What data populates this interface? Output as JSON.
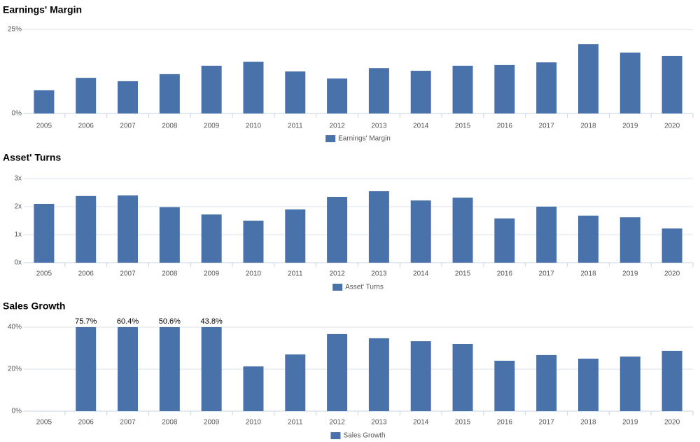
{
  "chart_data": [
    {
      "type": "bar",
      "title": "Earnings' Margin",
      "categories": [
        "2005",
        "2006",
        "2007",
        "2008",
        "2009",
        "2010",
        "2011",
        "2012",
        "2013",
        "2014",
        "2015",
        "2016",
        "2017",
        "2018",
        "2019",
        "2020"
      ],
      "series": [
        {
          "name": "Earnings' Margin",
          "color": "#4a72aa",
          "values": [
            6.9,
            10.6,
            9.6,
            11.7,
            14.2,
            15.4,
            12.5,
            10.4,
            13.5,
            12.7,
            14.2,
            14.4,
            15.2,
            20.6,
            18.1,
            17.1
          ]
        }
      ],
      "ylim": [
        0,
        25
      ],
      "yticks": [
        {
          "value": 0,
          "label": "0%"
        },
        {
          "value": 25,
          "label": "25%"
        }
      ],
      "grid": true
    },
    {
      "type": "bar",
      "title": "Asset' Turns",
      "categories": [
        "2005",
        "2006",
        "2007",
        "2008",
        "2009",
        "2010",
        "2011",
        "2012",
        "2013",
        "2014",
        "2015",
        "2016",
        "2017",
        "2018",
        "2019",
        "2020"
      ],
      "series": [
        {
          "name": "Asset' Turns",
          "color": "#4a72aa",
          "values": [
            2.1,
            2.38,
            2.4,
            1.98,
            1.72,
            1.5,
            1.9,
            2.35,
            2.55,
            2.22,
            2.32,
            1.58,
            2.0,
            1.68,
            1.62,
            1.22
          ]
        }
      ],
      "ylim": [
        0,
        3
      ],
      "yticks": [
        {
          "value": 0,
          "label": "0x"
        },
        {
          "value": 1,
          "label": "1x"
        },
        {
          "value": 2,
          "label": "2x"
        },
        {
          "value": 3,
          "label": "3x"
        }
      ],
      "grid": true
    },
    {
      "type": "bar",
      "title": "Sales Growth",
      "categories": [
        "2005",
        "2006",
        "2007",
        "2008",
        "2009",
        "2010",
        "2011",
        "2012",
        "2013",
        "2014",
        "2015",
        "2016",
        "2017",
        "2018",
        "2019",
        "2020"
      ],
      "series": [
        {
          "name": "Sales Growth",
          "color": "#4a72aa",
          "values": [
            null,
            75.7,
            60.4,
            50.6,
            43.8,
            21.3,
            27,
            36.7,
            34.7,
            33.3,
            32,
            24,
            26.7,
            25,
            26,
            28.7
          ],
          "value_labels": [
            null,
            "75.7%",
            "60.4%",
            "50.6%",
            "43.8%",
            null,
            null,
            null,
            null,
            null,
            null,
            null,
            null,
            null,
            null,
            null
          ]
        }
      ],
      "ylim": [
        0,
        40
      ],
      "yticks": [
        {
          "value": 0,
          "label": "0%"
        },
        {
          "value": 20,
          "label": "20%"
        },
        {
          "value": 40,
          "label": "40%"
        }
      ],
      "grid": true
    }
  ]
}
